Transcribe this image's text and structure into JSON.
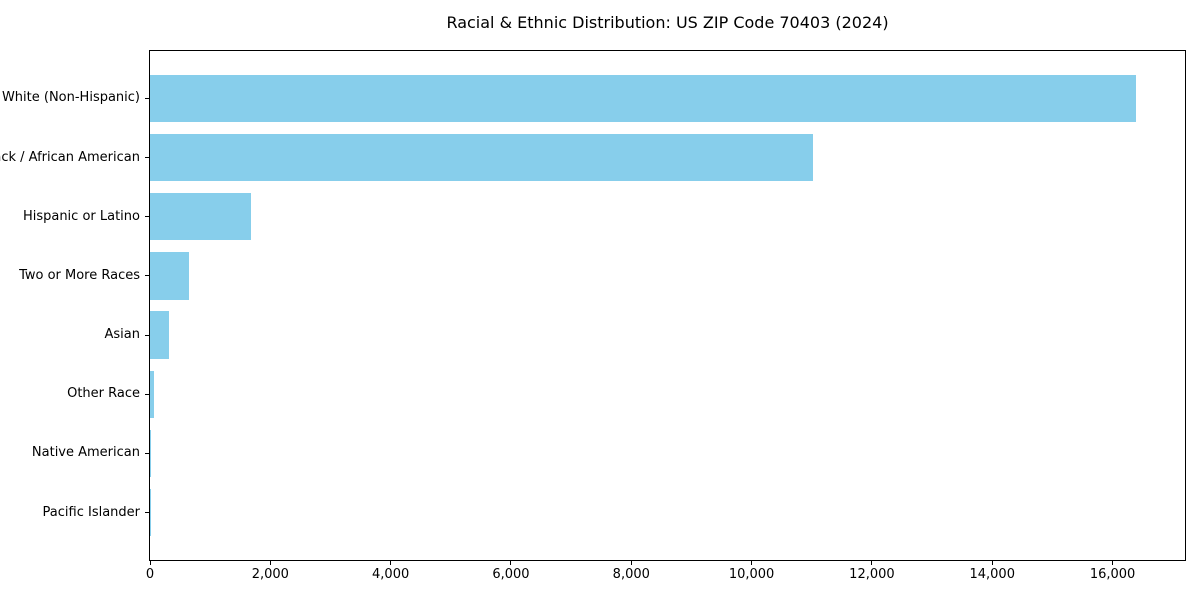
{
  "figure": {
    "background_color": "#ffffff",
    "text_color": "#000000",
    "axis_color": "#000000"
  },
  "chart_data": {
    "type": "bar",
    "orientation": "horizontal",
    "title": "Racial & Ethnic Distribution: US ZIP Code 70403 (2024)",
    "xlabel": "",
    "ylabel": "",
    "grid": false,
    "legend": null,
    "bar_color": "#87CEEB",
    "categories": [
      "White (Non-Hispanic)",
      "Black / African American",
      "Hispanic or Latino",
      "Two or More Races",
      "Asian",
      "Other Race",
      "Native American",
      "Pacific Islander"
    ],
    "values": [
      16385,
      11020,
      1675,
      650,
      315,
      60,
      20,
      5
    ],
    "xlim": [
      0,
      17204
    ],
    "xtick_values": [
      0,
      2000,
      4000,
      6000,
      8000,
      10000,
      12000,
      14000,
      16000
    ],
    "xtick_labels": [
      "0",
      "2,000",
      "4,000",
      "6,000",
      "8,000",
      "10,000",
      "12,000",
      "14,000",
      "16,000"
    ]
  }
}
